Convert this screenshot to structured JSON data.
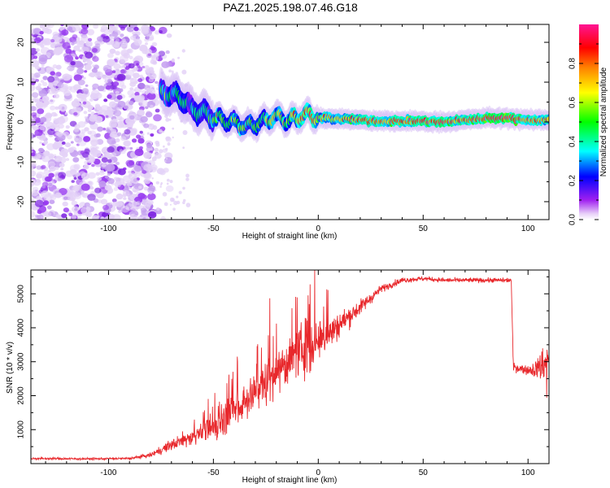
{
  "title": "PAZ1.2025.198.07.46.G18",
  "chart_data": [
    {
      "type": "heatmap",
      "xlabel": "Height of straight line (km)",
      "ylabel": "Frequency (Hz)",
      "xlim": [
        -137,
        110
      ],
      "ylim": [
        -24.5,
        24.5
      ],
      "xticks": [
        -100,
        -50,
        0,
        50,
        100
      ],
      "yticks": [
        -20,
        -10,
        0,
        10,
        20
      ],
      "colorbar": {
        "label": "Normalized spectral amplitude",
        "range": [
          0.0,
          1.0
        ],
        "ticks": [
          0.0,
          0.2,
          0.4,
          0.6,
          0.8
        ],
        "colormap": [
          "#a020f0",
          "#0000ff",
          "#00ffff",
          "#00ff00",
          "#ffff00",
          "#ff8000",
          "#ff0000",
          "#ff1493"
        ]
      },
      "noise_region_x": [
        -137,
        -78
      ],
      "ridge": {
        "description_points_x": [
          -75,
          -70,
          -65,
          -60,
          -55,
          -50,
          -45,
          -40,
          -35,
          -30,
          -25,
          -20,
          -15,
          -10,
          -5,
          0,
          10,
          20,
          30,
          40,
          50,
          60,
          70,
          80,
          90,
          100,
          110
        ],
        "freq": [
          7.5,
          7,
          6,
          3,
          2.5,
          1,
          0.5,
          0,
          -1,
          -0.5,
          0.5,
          1.5,
          0.5,
          1,
          2,
          1,
          0.8,
          0.5,
          0.2,
          0.2,
          0.2,
          0,
          0.5,
          1,
          1,
          0.5,
          0.5
        ],
        "amplitude": [
          0.3,
          0.35,
          0.4,
          0.35,
          0.4,
          0.45,
          0.45,
          0.5,
          0.5,
          0.55,
          0.55,
          0.6,
          0.6,
          0.65,
          0.7,
          0.7,
          0.75,
          0.8,
          0.8,
          0.8,
          0.9,
          0.85,
          0.8,
          0.9,
          0.9,
          0.8,
          0.75
        ]
      }
    },
    {
      "type": "line",
      "xlabel": "Height of straight line (km)",
      "ylabel": "SNR (10 * v/v)",
      "xlim": [
        -137,
        110
      ],
      "ylim": [
        0,
        5700
      ],
      "xticks": [
        -100,
        -50,
        0,
        50,
        100
      ],
      "yticks": [
        1000,
        2000,
        3000,
        4000,
        5000
      ],
      "series_color": "#e8282c",
      "envelope": {
        "x": [
          -137,
          -110,
          -90,
          -80,
          -70,
          -60,
          -50,
          -40,
          -30,
          -20,
          -10,
          -5,
          0,
          10,
          20,
          30,
          40,
          50,
          60,
          70,
          80,
          90,
          92,
          93,
          100,
          105,
          108,
          110
        ],
        "mean": [
          150,
          140,
          150,
          250,
          550,
          800,
          1050,
          1550,
          2100,
          2700,
          3250,
          3450,
          3500,
          4100,
          4600,
          5150,
          5400,
          5450,
          5400,
          5400,
          5400,
          5400,
          5400,
          2850,
          2750,
          2800,
          3000,
          3100
        ],
        "spread": [
          60,
          60,
          60,
          120,
          300,
          450,
          700,
          900,
          1100,
          1300,
          1200,
          1500,
          1100,
          700,
          400,
          200,
          150,
          120,
          120,
          120,
          120,
          120,
          120,
          250,
          250,
          600,
          1200,
          900
        ]
      }
    }
  ]
}
